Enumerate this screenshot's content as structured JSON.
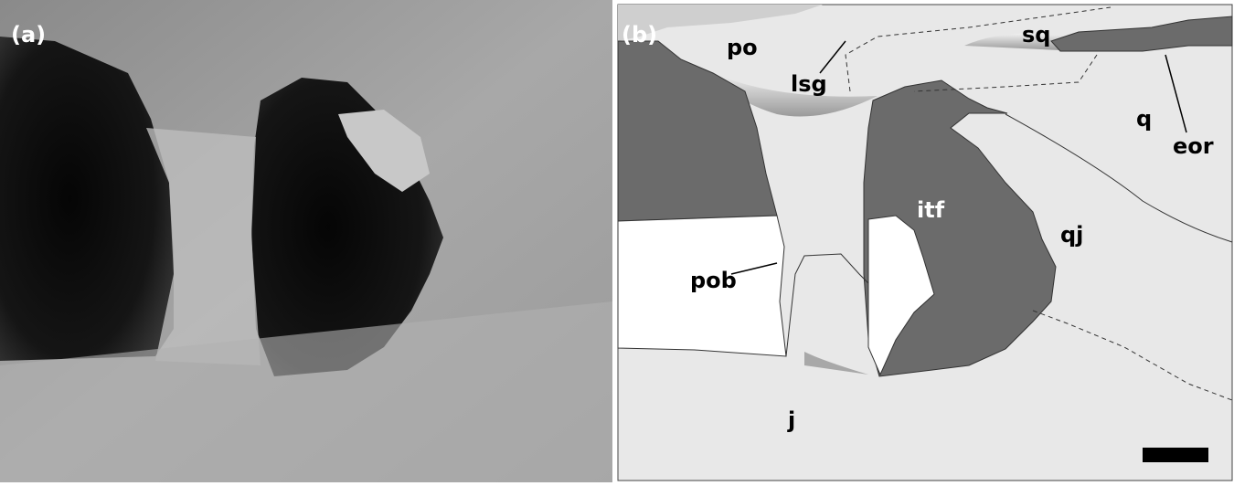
{
  "panels": {
    "a": {
      "label": "(a)"
    },
    "b": {
      "label": "(b)"
    }
  },
  "labels": {
    "po": "po",
    "lsg": "lsg",
    "sq": "sq",
    "q": "q",
    "eor": "eor",
    "qj": "qj",
    "itf": "itf",
    "pob": "pob",
    "j": "j"
  }
}
